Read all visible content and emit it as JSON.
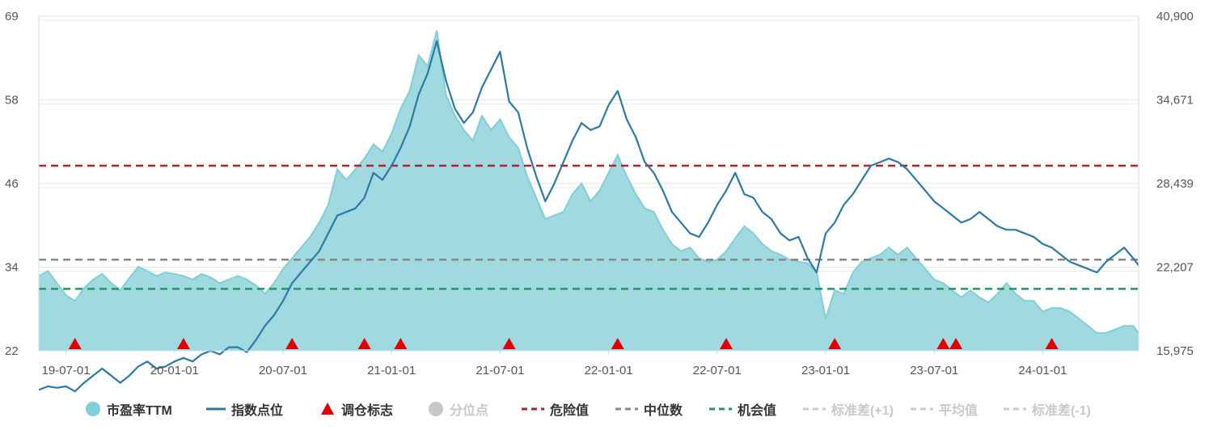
{
  "chart_data": {
    "type": "area",
    "x_ticks": [
      "19-07-01",
      "20-01-01",
      "20-07-01",
      "21-01-01",
      "21-07-01",
      "22-01-01",
      "22-07-01",
      "23-01-01",
      "23-07-01",
      "24-01-01"
    ],
    "x_tick_months": [
      6,
      12,
      18,
      24,
      30,
      36,
      42,
      48,
      54,
      60
    ],
    "x_range_months": [
      4.5,
      65.3
    ],
    "y_left": {
      "ticks": [
        "22",
        "34",
        "46",
        "58",
        "69"
      ],
      "range": [
        22,
        69
      ]
    },
    "y_right": {
      "ticks": [
        "15,975",
        "22,207",
        "28,439",
        "34,671",
        "40,900"
      ],
      "range": [
        15975,
        40900
      ]
    },
    "series": [
      {
        "name": "市盈率TTM",
        "axis": "left",
        "color": "#7ecfd8",
        "points": [
          [
            4.5,
            32.5
          ],
          [
            5.0,
            33.2
          ],
          [
            5.5,
            31.5
          ],
          [
            6.0,
            29.8
          ],
          [
            6.5,
            29.0
          ],
          [
            7.0,
            30.8
          ],
          [
            7.5,
            32.0
          ],
          [
            8.0,
            32.8
          ],
          [
            8.5,
            31.5
          ],
          [
            9.0,
            30.5
          ],
          [
            9.5,
            32.2
          ],
          [
            10.0,
            33.8
          ],
          [
            10.5,
            33.2
          ],
          [
            11.0,
            32.5
          ],
          [
            11.5,
            33.0
          ],
          [
            12.0,
            32.8
          ],
          [
            12.5,
            32.5
          ],
          [
            13.0,
            32.0
          ],
          [
            13.5,
            32.8
          ],
          [
            14.0,
            32.3
          ],
          [
            14.5,
            31.5
          ],
          [
            15.0,
            32.0
          ],
          [
            15.5,
            32.5
          ],
          [
            16.0,
            32.0
          ],
          [
            16.5,
            31.2
          ],
          [
            17.0,
            30.0
          ],
          [
            17.5,
            31.5
          ],
          [
            18.0,
            33.5
          ],
          [
            18.5,
            35.0
          ],
          [
            19.0,
            36.5
          ],
          [
            19.5,
            38.0
          ],
          [
            20.0,
            40.0
          ],
          [
            20.5,
            42.5
          ],
          [
            21.0,
            47.5
          ],
          [
            21.5,
            46.0
          ],
          [
            22.0,
            47.5
          ],
          [
            22.5,
            49.0
          ],
          [
            23.0,
            51.0
          ],
          [
            23.5,
            50.0
          ],
          [
            24.0,
            52.5
          ],
          [
            24.5,
            56.0
          ],
          [
            25.0,
            58.5
          ],
          [
            25.5,
            63.5
          ],
          [
            26.0,
            62.0
          ],
          [
            26.5,
            67.0
          ],
          [
            27.0,
            58.0
          ],
          [
            27.5,
            55.0
          ],
          [
            28.0,
            53.0
          ],
          [
            28.5,
            51.5
          ],
          [
            29.0,
            55.0
          ],
          [
            29.5,
            53.0
          ],
          [
            30.0,
            54.5
          ],
          [
            30.5,
            52.0
          ],
          [
            31.0,
            50.5
          ],
          [
            31.5,
            46.5
          ],
          [
            32.0,
            43.5
          ],
          [
            32.5,
            40.5
          ],
          [
            33.0,
            41.0
          ],
          [
            33.5,
            41.5
          ],
          [
            34.0,
            44.0
          ],
          [
            34.5,
            45.5
          ],
          [
            35.0,
            43.0
          ],
          [
            35.5,
            44.5
          ],
          [
            36.0,
            47.0
          ],
          [
            36.5,
            49.5
          ],
          [
            37.0,
            46.5
          ],
          [
            37.5,
            44.0
          ],
          [
            38.0,
            42.0
          ],
          [
            38.5,
            41.5
          ],
          [
            39.0,
            39.0
          ],
          [
            39.5,
            37.0
          ],
          [
            40.0,
            36.0
          ],
          [
            40.5,
            36.5
          ],
          [
            41.0,
            35.0
          ],
          [
            41.5,
            34.5
          ],
          [
            42.0,
            34.8
          ],
          [
            42.5,
            36.0
          ],
          [
            43.0,
            37.8
          ],
          [
            43.5,
            39.5
          ],
          [
            44.0,
            38.5
          ],
          [
            44.5,
            37.0
          ],
          [
            45.0,
            36.0
          ],
          [
            45.5,
            35.5
          ],
          [
            46.0,
            34.8
          ],
          [
            46.5,
            34.5
          ],
          [
            47.0,
            34.3
          ],
          [
            47.5,
            33.0
          ],
          [
            48.0,
            26.5
          ],
          [
            48.5,
            30.5
          ],
          [
            49.0,
            30.0
          ],
          [
            49.5,
            33.0
          ],
          [
            50.0,
            34.5
          ],
          [
            50.5,
            35.0
          ],
          [
            51.0,
            35.5
          ],
          [
            51.5,
            36.5
          ],
          [
            52.0,
            35.5
          ],
          [
            52.5,
            36.5
          ],
          [
            53.0,
            35.0
          ],
          [
            53.5,
            33.5
          ],
          [
            54.0,
            32.0
          ],
          [
            54.5,
            31.5
          ],
          [
            55.0,
            30.5
          ],
          [
            55.5,
            29.5
          ],
          [
            56.0,
            30.5
          ],
          [
            56.5,
            29.5
          ],
          [
            57.0,
            28.8
          ],
          [
            57.5,
            30.0
          ],
          [
            58.0,
            31.5
          ],
          [
            58.5,
            30.0
          ],
          [
            59.0,
            29.0
          ],
          [
            59.5,
            29.0
          ],
          [
            60.0,
            27.5
          ],
          [
            60.5,
            28.0
          ],
          [
            61.0,
            28.0
          ],
          [
            61.5,
            27.5
          ],
          [
            62.0,
            26.5
          ],
          [
            62.5,
            25.5
          ],
          [
            63.0,
            24.5
          ],
          [
            63.5,
            24.5
          ],
          [
            64.0,
            25.0
          ],
          [
            64.5,
            25.5
          ],
          [
            65.0,
            25.5
          ],
          [
            65.3,
            24.5
          ]
        ]
      },
      {
        "name": "指数点位",
        "axis": "right",
        "color": "#2b7aa6",
        "points": [
          [
            4.5,
            16.5
          ],
          [
            5.0,
            17.0
          ],
          [
            5.5,
            16.8
          ],
          [
            6.0,
            17.0
          ],
          [
            6.5,
            16.3
          ],
          [
            7.0,
            17.5
          ],
          [
            7.5,
            18.5
          ],
          [
            8.0,
            19.5
          ],
          [
            8.5,
            18.5
          ],
          [
            9.0,
            17.5
          ],
          [
            9.5,
            18.5
          ],
          [
            10.0,
            19.8
          ],
          [
            10.5,
            20.5
          ],
          [
            11.0,
            19.5
          ],
          [
            11.5,
            19.8
          ],
          [
            12.0,
            20.5
          ],
          [
            12.5,
            21.0
          ],
          [
            13.0,
            20.5
          ],
          [
            13.5,
            21.5
          ],
          [
            14.0,
            22.0
          ],
          [
            14.5,
            21.5
          ],
          [
            15.0,
            22.5
          ],
          [
            15.5,
            22.5
          ],
          [
            16.0,
            21.8
          ],
          [
            16.5,
            23.5
          ],
          [
            17.0,
            25.5
          ],
          [
            17.5,
            27.0
          ],
          [
            18.0,
            29.0
          ],
          [
            18.5,
            31.5
          ],
          [
            19.0,
            33.0
          ],
          [
            19.5,
            34.5
          ],
          [
            20.0,
            36.0
          ],
          [
            20.5,
            38.5
          ],
          [
            21.0,
            41.0
          ],
          [
            21.5,
            41.5
          ],
          [
            22.0,
            42.0
          ],
          [
            22.5,
            43.5
          ],
          [
            23.0,
            47.0
          ],
          [
            23.5,
            46.0
          ],
          [
            24.0,
            48.0
          ],
          [
            24.5,
            50.5
          ],
          [
            25.0,
            53.5
          ],
          [
            25.5,
            58.0
          ],
          [
            26.0,
            61.0
          ],
          [
            26.5,
            65.5
          ],
          [
            27.0,
            60.0
          ],
          [
            27.5,
            56.0
          ],
          [
            28.0,
            54.0
          ],
          [
            28.5,
            55.5
          ],
          [
            29.0,
            59.0
          ],
          [
            29.5,
            61.5
          ],
          [
            30.0,
            64.0
          ],
          [
            30.5,
            57.0
          ],
          [
            31.0,
            55.5
          ],
          [
            31.5,
            50.5
          ],
          [
            32.0,
            46.5
          ],
          [
            32.5,
            43.0
          ],
          [
            33.0,
            45.5
          ],
          [
            33.5,
            48.5
          ],
          [
            34.0,
            51.5
          ],
          [
            34.5,
            54.0
          ],
          [
            35.0,
            53.0
          ],
          [
            35.5,
            53.5
          ],
          [
            36.0,
            56.5
          ],
          [
            36.5,
            58.5
          ],
          [
            37.0,
            54.5
          ],
          [
            37.5,
            52.0
          ],
          [
            38.0,
            48.5
          ],
          [
            38.5,
            47.0
          ],
          [
            39.0,
            44.5
          ],
          [
            39.5,
            41.5
          ],
          [
            40.0,
            40.0
          ],
          [
            40.5,
            38.5
          ],
          [
            41.0,
            38.0
          ],
          [
            41.5,
            40.0
          ],
          [
            42.0,
            42.5
          ],
          [
            42.5,
            44.5
          ],
          [
            43.0,
            47.0
          ],
          [
            43.5,
            44.0
          ],
          [
            44.0,
            43.5
          ],
          [
            44.5,
            41.5
          ],
          [
            45.0,
            40.5
          ],
          [
            45.5,
            38.5
          ],
          [
            46.0,
            37.5
          ],
          [
            46.5,
            38.0
          ],
          [
            47.0,
            35.0
          ],
          [
            47.5,
            33.0
          ],
          [
            48.0,
            38.5
          ],
          [
            48.5,
            40.0
          ],
          [
            49.0,
            42.5
          ],
          [
            49.5,
            44.0
          ],
          [
            50.0,
            46.0
          ],
          [
            50.5,
            48.0
          ],
          [
            51.0,
            48.5
          ],
          [
            51.5,
            49.0
          ],
          [
            52.0,
            48.5
          ],
          [
            52.5,
            47.5
          ],
          [
            53.0,
            46.0
          ],
          [
            53.5,
            44.5
          ],
          [
            54.0,
            43.0
          ],
          [
            54.5,
            42.0
          ],
          [
            55.0,
            41.0
          ],
          [
            55.5,
            40.0
          ],
          [
            56.0,
            40.5
          ],
          [
            56.5,
            41.5
          ],
          [
            57.0,
            40.5
          ],
          [
            57.5,
            39.5
          ],
          [
            58.0,
            39.0
          ],
          [
            58.5,
            39.0
          ],
          [
            59.0,
            38.5
          ],
          [
            59.5,
            38.0
          ],
          [
            60.0,
            37.0
          ],
          [
            60.5,
            36.5
          ],
          [
            61.0,
            35.5
          ],
          [
            61.5,
            34.5
          ],
          [
            62.0,
            34.0
          ],
          [
            62.5,
            33.5
          ],
          [
            63.0,
            33.0
          ],
          [
            63.5,
            34.5
          ],
          [
            64.0,
            35.5
          ],
          [
            64.5,
            36.5
          ],
          [
            65.0,
            35.0
          ],
          [
            65.3,
            34.0
          ]
        ]
      }
    ],
    "reference_lines": [
      {
        "name": "危险值",
        "axis": "left",
        "value": 48.0,
        "color": "#b5202a"
      },
      {
        "name": "中位数",
        "axis": "left",
        "value": 34.8,
        "color": "#888888"
      },
      {
        "name": "机会值",
        "axis": "left",
        "value": 30.7,
        "color": "#1f9a5b"
      }
    ],
    "markers": {
      "name": "调仓标志",
      "color": "#e00000",
      "x_months": [
        6.5,
        12.5,
        18.5,
        22.5,
        24.5,
        30.5,
        36.5,
        42.5,
        48.5,
        54.5,
        55.2,
        60.5
      ]
    },
    "grid": true,
    "legend_position": "bottom"
  },
  "legend": [
    {
      "label": "市盈率TTM",
      "kind": "circle",
      "color": "#7ecfd8",
      "active": true
    },
    {
      "label": "指数点位",
      "kind": "line",
      "color": "#2b7aa6",
      "active": true
    },
    {
      "label": "调仓标志",
      "kind": "triangle",
      "color": "#e00000",
      "active": true
    },
    {
      "label": "分位点",
      "kind": "circle",
      "color": "#c8c8c8",
      "active": false
    },
    {
      "label": "危险值",
      "kind": "dash",
      "color": "#b5202a",
      "active": true
    },
    {
      "label": "中位数",
      "kind": "dash",
      "color": "#888888",
      "active": true
    },
    {
      "label": "机会值",
      "kind": "dash",
      "color": "#1f9a5b",
      "active": true
    },
    {
      "label": "标准差(+1)",
      "kind": "dash",
      "color": "#cccccc",
      "active": false
    },
    {
      "label": "平均值",
      "kind": "dash",
      "color": "#cccccc",
      "active": false
    },
    {
      "label": "标准差(-1)",
      "kind": "dash",
      "color": "#cccccc",
      "active": false
    }
  ]
}
